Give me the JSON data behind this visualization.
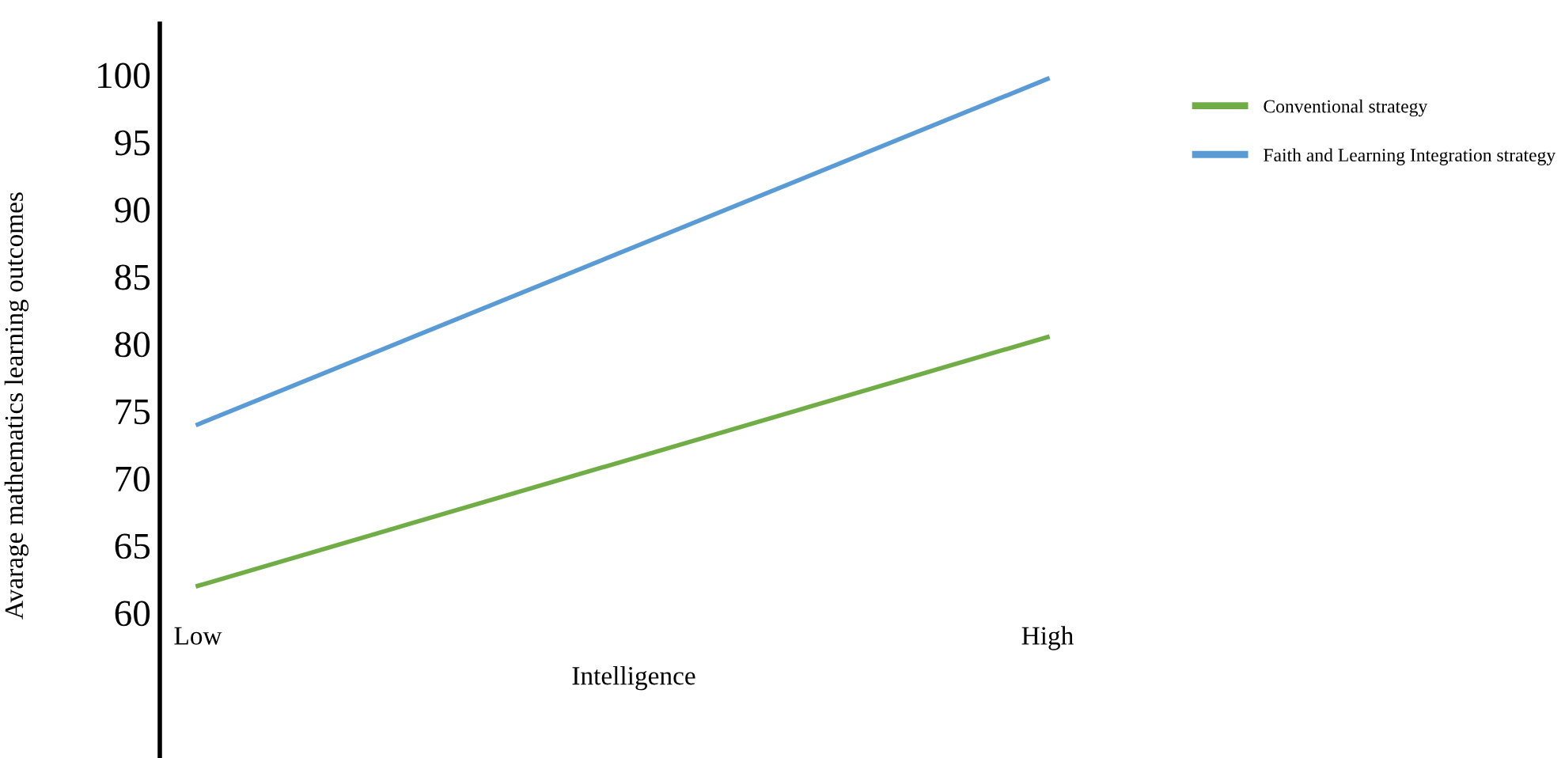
{
  "chart_data": {
    "type": "line",
    "xlabel": "Intelligence",
    "ylabel": "Avarage mathematics learning outcomes",
    "categories": [
      "Low",
      "High"
    ],
    "series": [
      {
        "name": "Conventional strategy",
        "color": "#70ad47",
        "values": [
          62,
          80.5
        ]
      },
      {
        "name": "Faith and Learning Integration strategy",
        "color": "#5b9bd5",
        "values": [
          74,
          99.7
        ]
      }
    ],
    "ylim": [
      49.2,
      103.8
    ],
    "yticks": [
      60,
      65,
      70,
      75,
      80,
      85,
      90,
      95,
      100
    ],
    "grid": false,
    "legend": "top right",
    "marker": "none",
    "line_style": "solid"
  }
}
